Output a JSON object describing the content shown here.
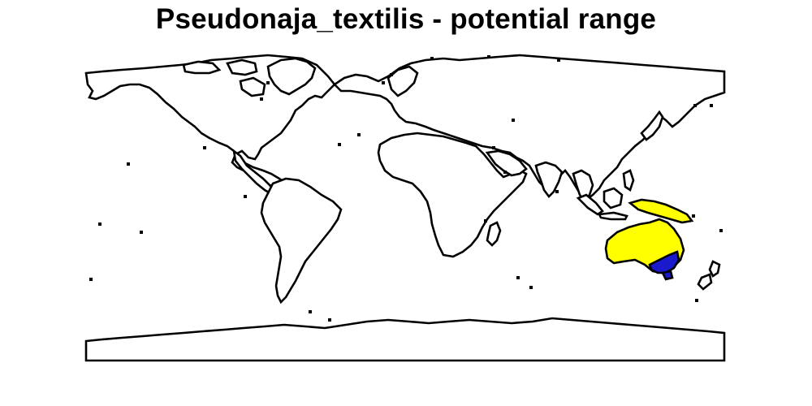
{
  "title": "Pseudonaja_textilis - potential range",
  "legend_colors": {
    "potential_range": "#ffff00",
    "current_range": "#1a1acc",
    "outline": "#000000",
    "background": "#ffffff"
  }
}
